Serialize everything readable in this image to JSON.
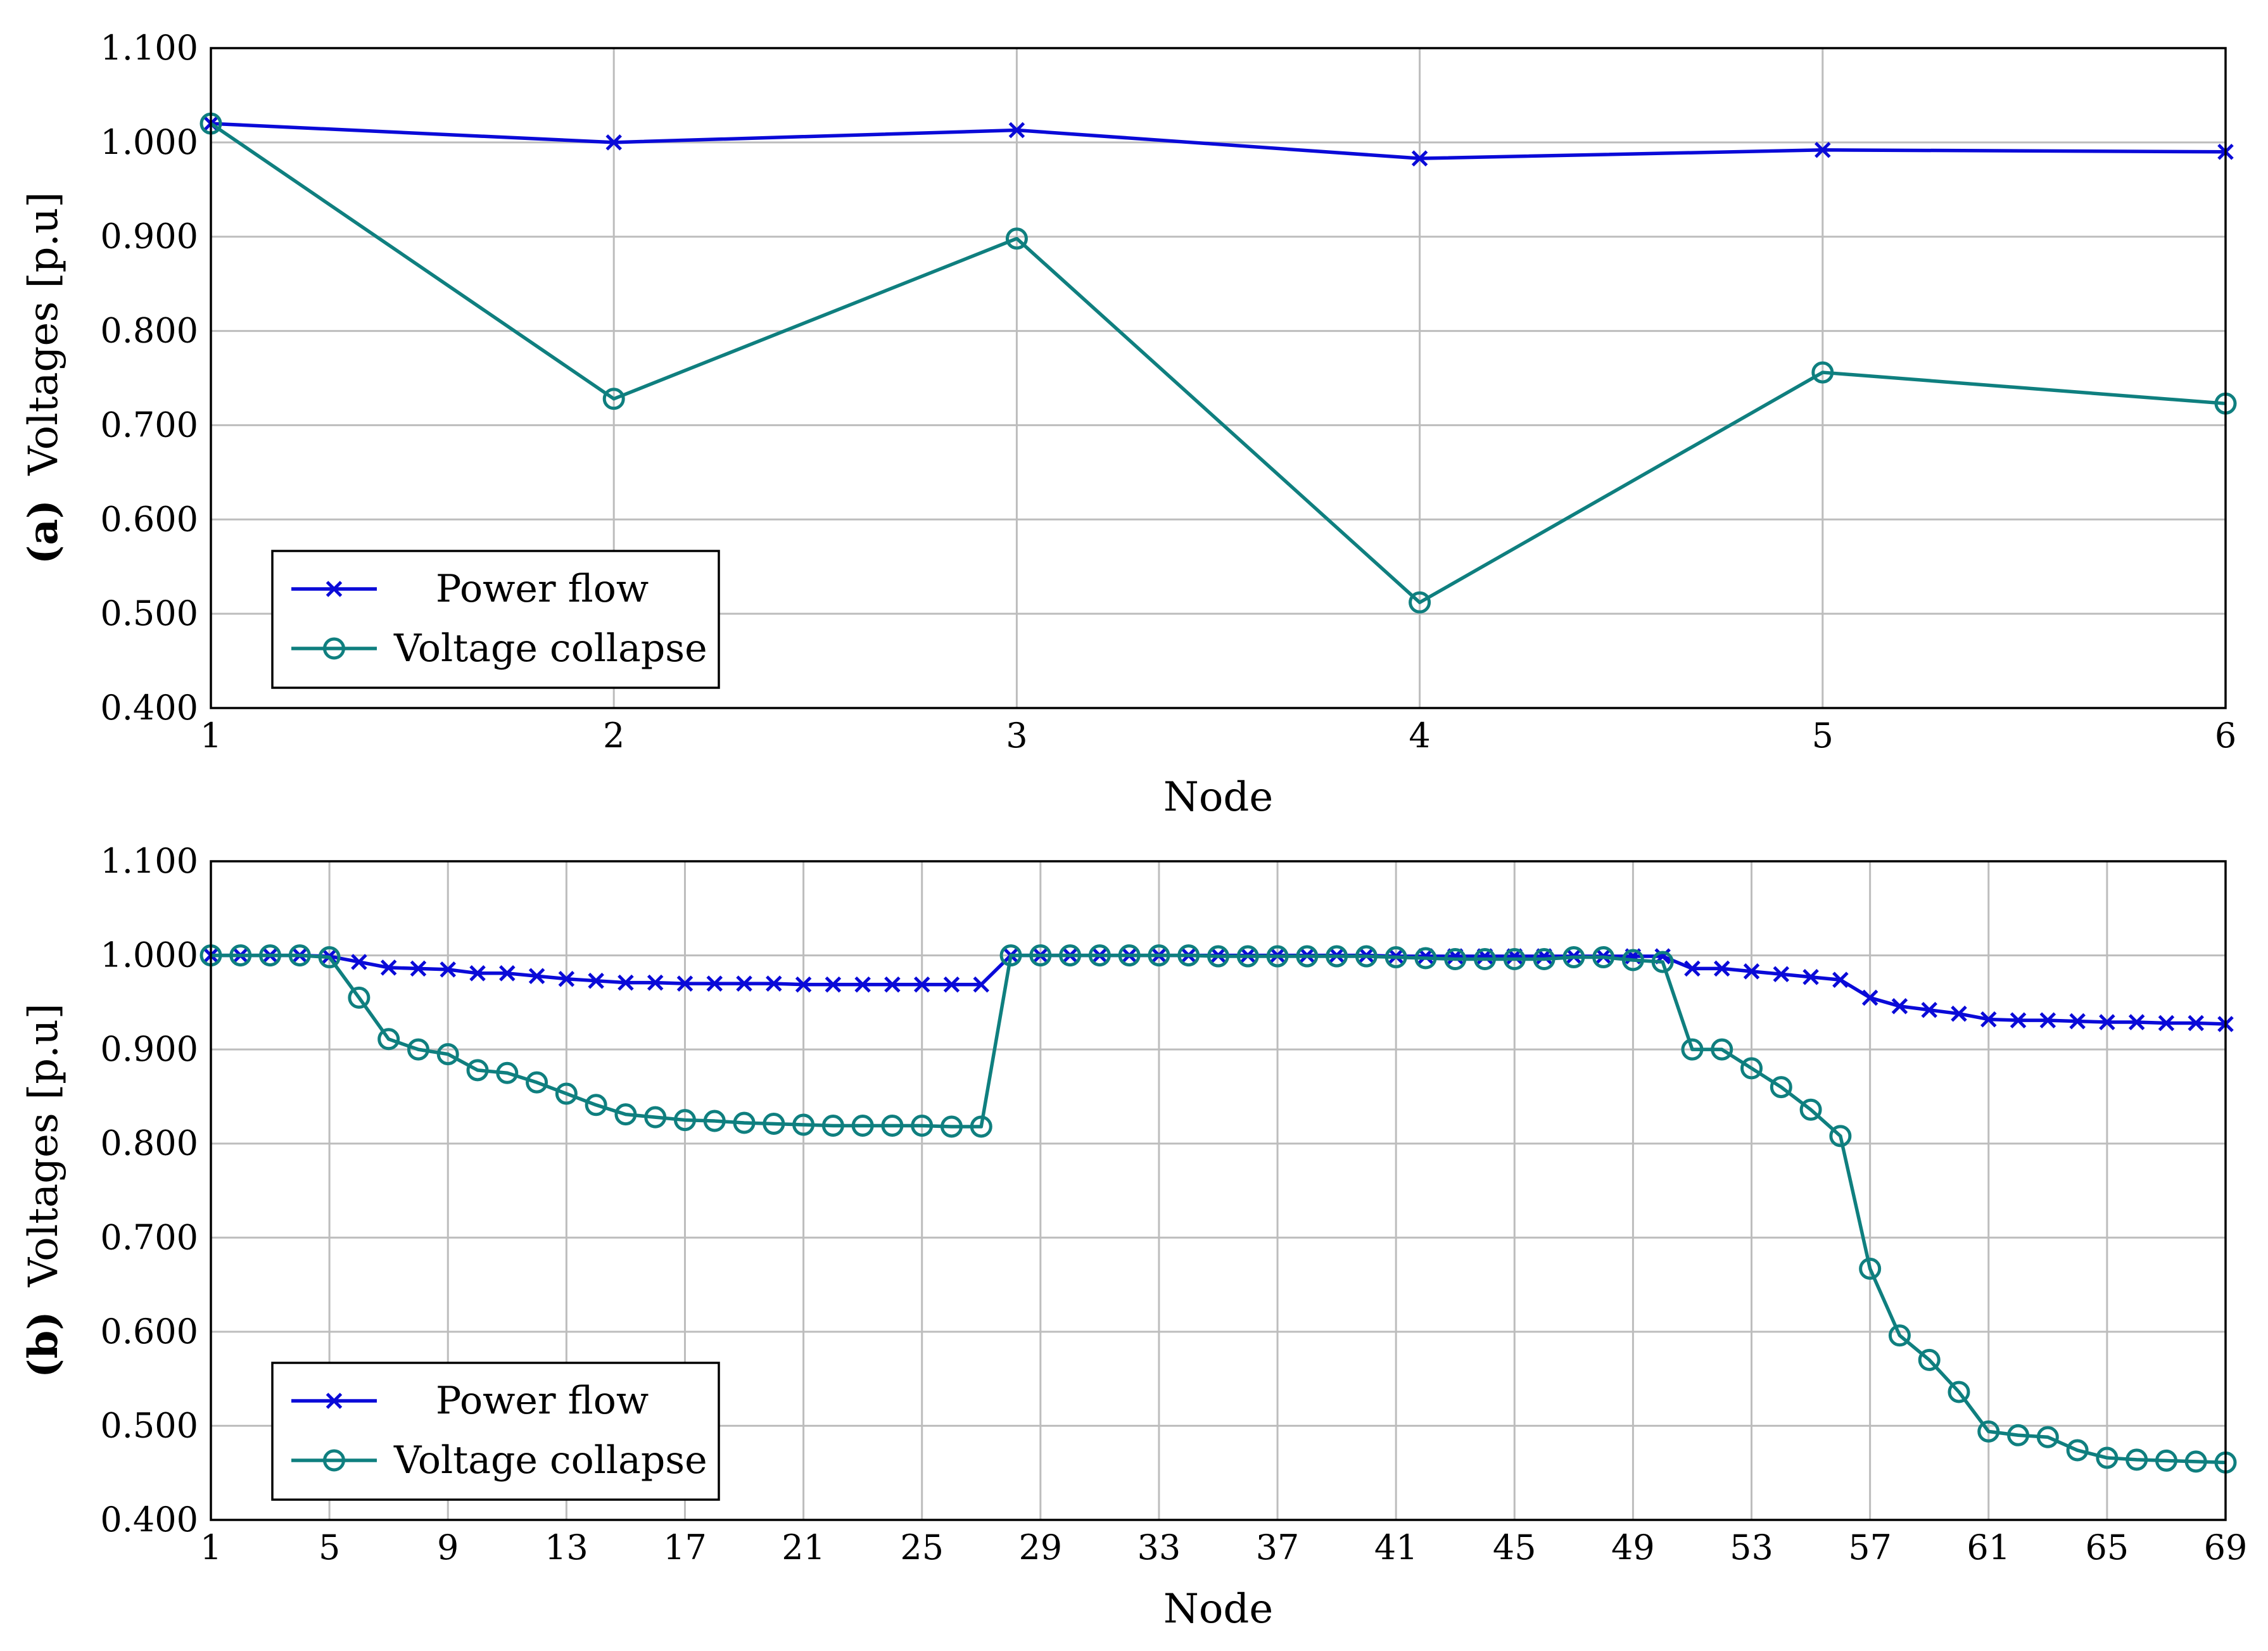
{
  "chart_data": [
    {
      "panel": "(a)",
      "type": "line",
      "title": "",
      "xlabel": "Node",
      "ylabel_prefix": "(a)",
      "ylabel_text": "Voltages [p.u]",
      "xlim": [
        1,
        6
      ],
      "ylim": [
        0.4,
        1.1
      ],
      "x_ticks": [
        1,
        2,
        3,
        4,
        5,
        6
      ],
      "x_tick_labels": [
        "1",
        "2",
        "3",
        "4",
        "5",
        "6"
      ],
      "y_ticks": [
        0.4,
        0.5,
        0.6,
        0.7,
        0.8,
        0.9,
        1.0,
        1.1
      ],
      "y_tick_labels": [
        "0.400",
        "0.500",
        "0.600",
        "0.700",
        "0.800",
        "0.900",
        "1.000",
        "1.100"
      ],
      "grid": true,
      "legend_position": "bottom-left",
      "x": [
        1,
        2,
        3,
        4,
        5,
        6
      ],
      "series": [
        {
          "name": "Power flow",
          "color": "#0a0ad8",
          "marker": "x",
          "values": [
            1.02,
            1.0,
            1.013,
            0.983,
            0.992,
            0.99
          ]
        },
        {
          "name": "Voltage collapse",
          "color": "#0f7f7f",
          "marker": "o",
          "values": [
            1.02,
            0.728,
            0.898,
            0.512,
            0.756,
            0.723
          ]
        }
      ]
    },
    {
      "panel": "(b)",
      "type": "line",
      "title": "",
      "xlabel": "Node",
      "ylabel_prefix": "(b)",
      "ylabel_text": "Voltages [p.u]",
      "xlim": [
        1,
        69
      ],
      "ylim": [
        0.4,
        1.1
      ],
      "x_ticks": [
        1,
        5,
        9,
        13,
        17,
        21,
        25,
        29,
        33,
        37,
        41,
        45,
        49,
        53,
        57,
        61,
        65,
        69
      ],
      "x_tick_labels": [
        "1",
        "5",
        "9",
        "13",
        "17",
        "21",
        "25",
        "29",
        "33",
        "37",
        "41",
        "45",
        "49",
        "53",
        "57",
        "61",
        "65",
        "69"
      ],
      "y_ticks": [
        0.4,
        0.5,
        0.6,
        0.7,
        0.8,
        0.9,
        1.0,
        1.1
      ],
      "y_tick_labels": [
        "0.400",
        "0.500",
        "0.600",
        "0.700",
        "0.800",
        "0.900",
        "1.000",
        "1.100"
      ],
      "grid": true,
      "legend_position": "bottom-left",
      "x": [
        1,
        2,
        3,
        4,
        5,
        6,
        7,
        8,
        9,
        10,
        11,
        12,
        13,
        14,
        15,
        16,
        17,
        18,
        19,
        20,
        21,
        22,
        23,
        24,
        25,
        26,
        27,
        28,
        29,
        30,
        31,
        32,
        33,
        34,
        35,
        36,
        37,
        38,
        39,
        40,
        41,
        42,
        43,
        44,
        45,
        46,
        47,
        48,
        49,
        50,
        51,
        52,
        53,
        54,
        55,
        56,
        57,
        58,
        59,
        60,
        61,
        62,
        63,
        64,
        65,
        66,
        67,
        68,
        69
      ],
      "series": [
        {
          "name": "Power flow",
          "color": "#0a0ad8",
          "marker": "x",
          "values": [
            1.0,
            1.0,
            1.0,
            1.0,
            0.999,
            0.993,
            0.987,
            0.986,
            0.985,
            0.981,
            0.981,
            0.978,
            0.975,
            0.973,
            0.971,
            0.971,
            0.97,
            0.97,
            0.97,
            0.97,
            0.969,
            0.969,
            0.969,
            0.969,
            0.969,
            0.969,
            0.969,
            1.0,
            1.0,
            1.0,
            1.0,
            1.0,
            1.0,
            1.0,
            1.0,
            1.0,
            1.0,
            1.0,
            1.0,
            1.0,
            0.999,
            0.999,
            0.999,
            0.999,
            0.999,
            0.999,
            0.999,
            0.999,
            0.999,
            0.999,
            0.986,
            0.986,
            0.983,
            0.98,
            0.977,
            0.974,
            0.955,
            0.946,
            0.942,
            0.938,
            0.932,
            0.931,
            0.931,
            0.93,
            0.929,
            0.929,
            0.928,
            0.928,
            0.927
          ]
        },
        {
          "name": "Voltage collapse",
          "color": "#0f7f7f",
          "marker": "o",
          "values": [
            1.0,
            1.0,
            1.0,
            1.0,
            0.998,
            0.955,
            0.911,
            0.9,
            0.895,
            0.878,
            0.875,
            0.865,
            0.853,
            0.841,
            0.831,
            0.828,
            0.825,
            0.824,
            0.822,
            0.821,
            0.82,
            0.819,
            0.819,
            0.819,
            0.819,
            0.818,
            0.818,
            1.0,
            1.0,
            1.0,
            1.0,
            1.0,
            1.0,
            1.0,
            0.999,
            0.999,
            0.999,
            0.999,
            0.999,
            0.999,
            0.998,
            0.997,
            0.996,
            0.996,
            0.996,
            0.996,
            0.998,
            0.998,
            0.995,
            0.993,
            0.9,
            0.9,
            0.88,
            0.86,
            0.836,
            0.808,
            0.667,
            0.596,
            0.57,
            0.536,
            0.494,
            0.49,
            0.488,
            0.474,
            0.466,
            0.464,
            0.463,
            0.462,
            0.461
          ]
        }
      ]
    }
  ]
}
